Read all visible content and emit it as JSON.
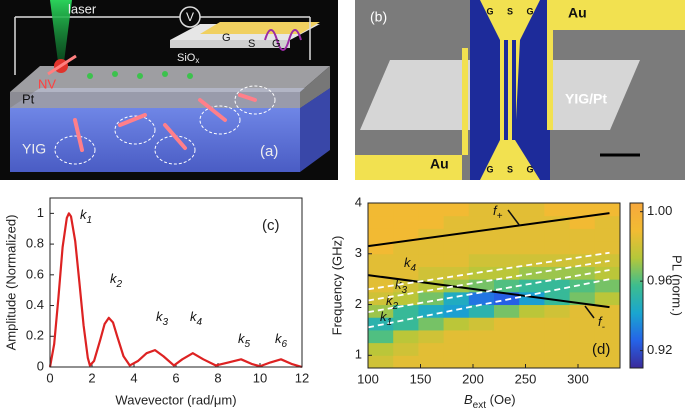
{
  "figure": {
    "a": {
      "label": "(a)",
      "laser": "laser",
      "voltmeter": "V",
      "nv": "NV",
      "pt": "Pt",
      "yig": "YIG",
      "oxide": "SiO",
      "oxide_sub": "x",
      "electrodes": [
        "G",
        "S",
        "G"
      ]
    },
    "b": {
      "label": "(b)",
      "electrodes_top": [
        "G",
        "S",
        "G"
      ],
      "electrodes_bottom": [
        "G",
        "S",
        "G"
      ],
      "au_top": "Au",
      "au_bottom": "Au",
      "sample": "YIG/Pt"
    }
  },
  "chart_data": [
    {
      "type": "line",
      "panel": "(c)",
      "xlabel": "Wavevector (rad/μm)",
      "ylabel": "Amplitude (Normalized)",
      "xlim": [
        0,
        12
      ],
      "ylim": [
        0,
        1.1
      ],
      "xticks": [
        0,
        2,
        4,
        6,
        8,
        10,
        12
      ],
      "yticks": [
        0,
        0.2,
        0.4,
        0.6,
        0.8,
        1
      ],
      "series": [
        {
          "color": "#dd2222",
          "x": [
            0,
            0.2,
            0.4,
            0.6,
            0.8,
            0.9,
            1.0,
            1.2,
            1.4,
            1.6,
            1.8,
            1.9,
            2.1,
            2.4,
            2.6,
            2.8,
            3.0,
            3.2,
            3.5,
            3.8,
            4.2,
            4.6,
            5.0,
            5.4,
            5.9,
            6.3,
            6.8,
            7.3,
            7.9,
            8.5,
            9.1,
            9.6,
            10.0,
            10.5,
            11.0,
            11.5,
            12.0
          ],
          "values": [
            0,
            0.15,
            0.45,
            0.78,
            0.97,
            1.0,
            0.98,
            0.82,
            0.55,
            0.27,
            0.06,
            0.01,
            0.04,
            0.18,
            0.28,
            0.32,
            0.29,
            0.2,
            0.07,
            0.01,
            0.04,
            0.09,
            0.11,
            0.07,
            0.01,
            0.05,
            0.09,
            0.05,
            0.01,
            0.03,
            0.05,
            0.02,
            0.005,
            0.03,
            0.05,
            0.02,
            0.0
          ]
        }
      ],
      "annotations": [
        {
          "text": "k",
          "sub": "1"
        },
        {
          "text": "k",
          "sub": "2"
        },
        {
          "text": "k",
          "sub": "3"
        },
        {
          "text": "k",
          "sub": "4"
        },
        {
          "text": "k",
          "sub": "5"
        },
        {
          "text": "k",
          "sub": "6"
        }
      ]
    },
    {
      "type": "heatmap",
      "panel": "(d)",
      "ylabel": "Frequency (GHz)",
      "xlabel": "B",
      "xlabel_sub": "ext",
      "xlabel_unit": " (Oe)",
      "colorbar_label": "PL (norm.)",
      "xlim": [
        100,
        340
      ],
      "ylim": [
        0.75,
        4.0
      ],
      "xticks": [
        100,
        150,
        200,
        250,
        300
      ],
      "yticks": [
        1,
        2,
        3,
        4
      ],
      "clim": [
        0.91,
        1.005
      ],
      "cticks": [
        0.92,
        0.96,
        {
          "value": 1,
          "label": "1.00"
        }
      ],
      "colorscale": [
        "#3a2a9a",
        "#2563e8",
        "#1aa6cf",
        "#3dbd8e",
        "#b5c73a",
        "#f2bb33",
        "#f7a83c"
      ],
      "xbins": [
        100,
        124,
        148,
        172,
        196,
        220,
        244,
        268,
        292,
        316,
        340
      ],
      "ybins": [
        0.75,
        1.0,
        1.25,
        1.5,
        1.75,
        2.0,
        2.25,
        2.5,
        2.75,
        3.0,
        3.25,
        3.5,
        3.75,
        4.0
      ],
      "z": [
        [
          0.98,
          0.985,
          0.985,
          0.985,
          0.985,
          0.985,
          0.985,
          0.985,
          0.985,
          0.985
        ],
        [
          0.975,
          0.98,
          0.985,
          0.985,
          0.985,
          0.985,
          0.985,
          0.985,
          0.985,
          0.985
        ],
        [
          0.96,
          0.975,
          0.98,
          0.985,
          0.985,
          0.985,
          0.985,
          0.985,
          0.985,
          0.985
        ],
        [
          0.95,
          0.955,
          0.965,
          0.975,
          0.98,
          0.985,
          0.985,
          0.985,
          0.985,
          0.985
        ],
        [
          0.97,
          0.955,
          0.945,
          0.94,
          0.95,
          0.965,
          0.975,
          0.98,
          0.985,
          0.985
        ],
        [
          0.98,
          0.975,
          0.965,
          0.945,
          0.93,
          0.925,
          0.94,
          0.955,
          0.965,
          0.975
        ],
        [
          0.985,
          0.98,
          0.975,
          0.97,
          0.965,
          0.96,
          0.955,
          0.955,
          0.96,
          0.965
        ],
        [
          0.985,
          0.985,
          0.98,
          0.98,
          0.975,
          0.975,
          0.97,
          0.97,
          0.97,
          0.975
        ],
        [
          0.985,
          0.985,
          0.985,
          0.985,
          0.98,
          0.98,
          0.98,
          0.98,
          0.98,
          0.98
        ],
        [
          0.99,
          0.985,
          0.985,
          0.985,
          0.985,
          0.985,
          0.985,
          0.985,
          0.985,
          0.985
        ],
        [
          0.99,
          0.99,
          0.985,
          0.985,
          0.985,
          0.985,
          0.985,
          0.985,
          0.985,
          0.985
        ],
        [
          0.99,
          0.99,
          0.99,
          0.985,
          0.985,
          0.985,
          0.985,
          0.985,
          0.99,
          0.985
        ],
        [
          0.99,
          0.99,
          0.99,
          0.99,
          0.985,
          0.985,
          0.985,
          0.99,
          0.99,
          0.99
        ]
      ],
      "series": [
        {
          "label": "f",
          "sub": "+",
          "color": "#000000",
          "dash": false,
          "x": [
            100,
            330
          ],
          "values": [
            3.15,
            3.8
          ]
        },
        {
          "label": "f",
          "sub": "-",
          "color": "#000000",
          "dash": false,
          "x": [
            100,
            330
          ],
          "values": [
            2.58,
            1.95
          ]
        },
        {
          "label": "k",
          "sub": "1",
          "color": "#ffffff",
          "dash": true,
          "x": [
            100,
            330
          ],
          "values": [
            1.55,
            2.5
          ]
        },
        {
          "label": "k",
          "sub": "2",
          "color": "#ffffff",
          "dash": true,
          "x": [
            100,
            330
          ],
          "values": [
            1.85,
            2.68
          ]
        },
        {
          "label": "k",
          "sub": "3",
          "color": "#ffffff",
          "dash": true,
          "x": [
            100,
            330
          ],
          "values": [
            2.08,
            2.86
          ]
        },
        {
          "label": "k",
          "sub": "4",
          "color": "#ffffff",
          "dash": true,
          "x": [
            100,
            330
          ],
          "values": [
            2.3,
            3.02
          ]
        }
      ]
    }
  ]
}
